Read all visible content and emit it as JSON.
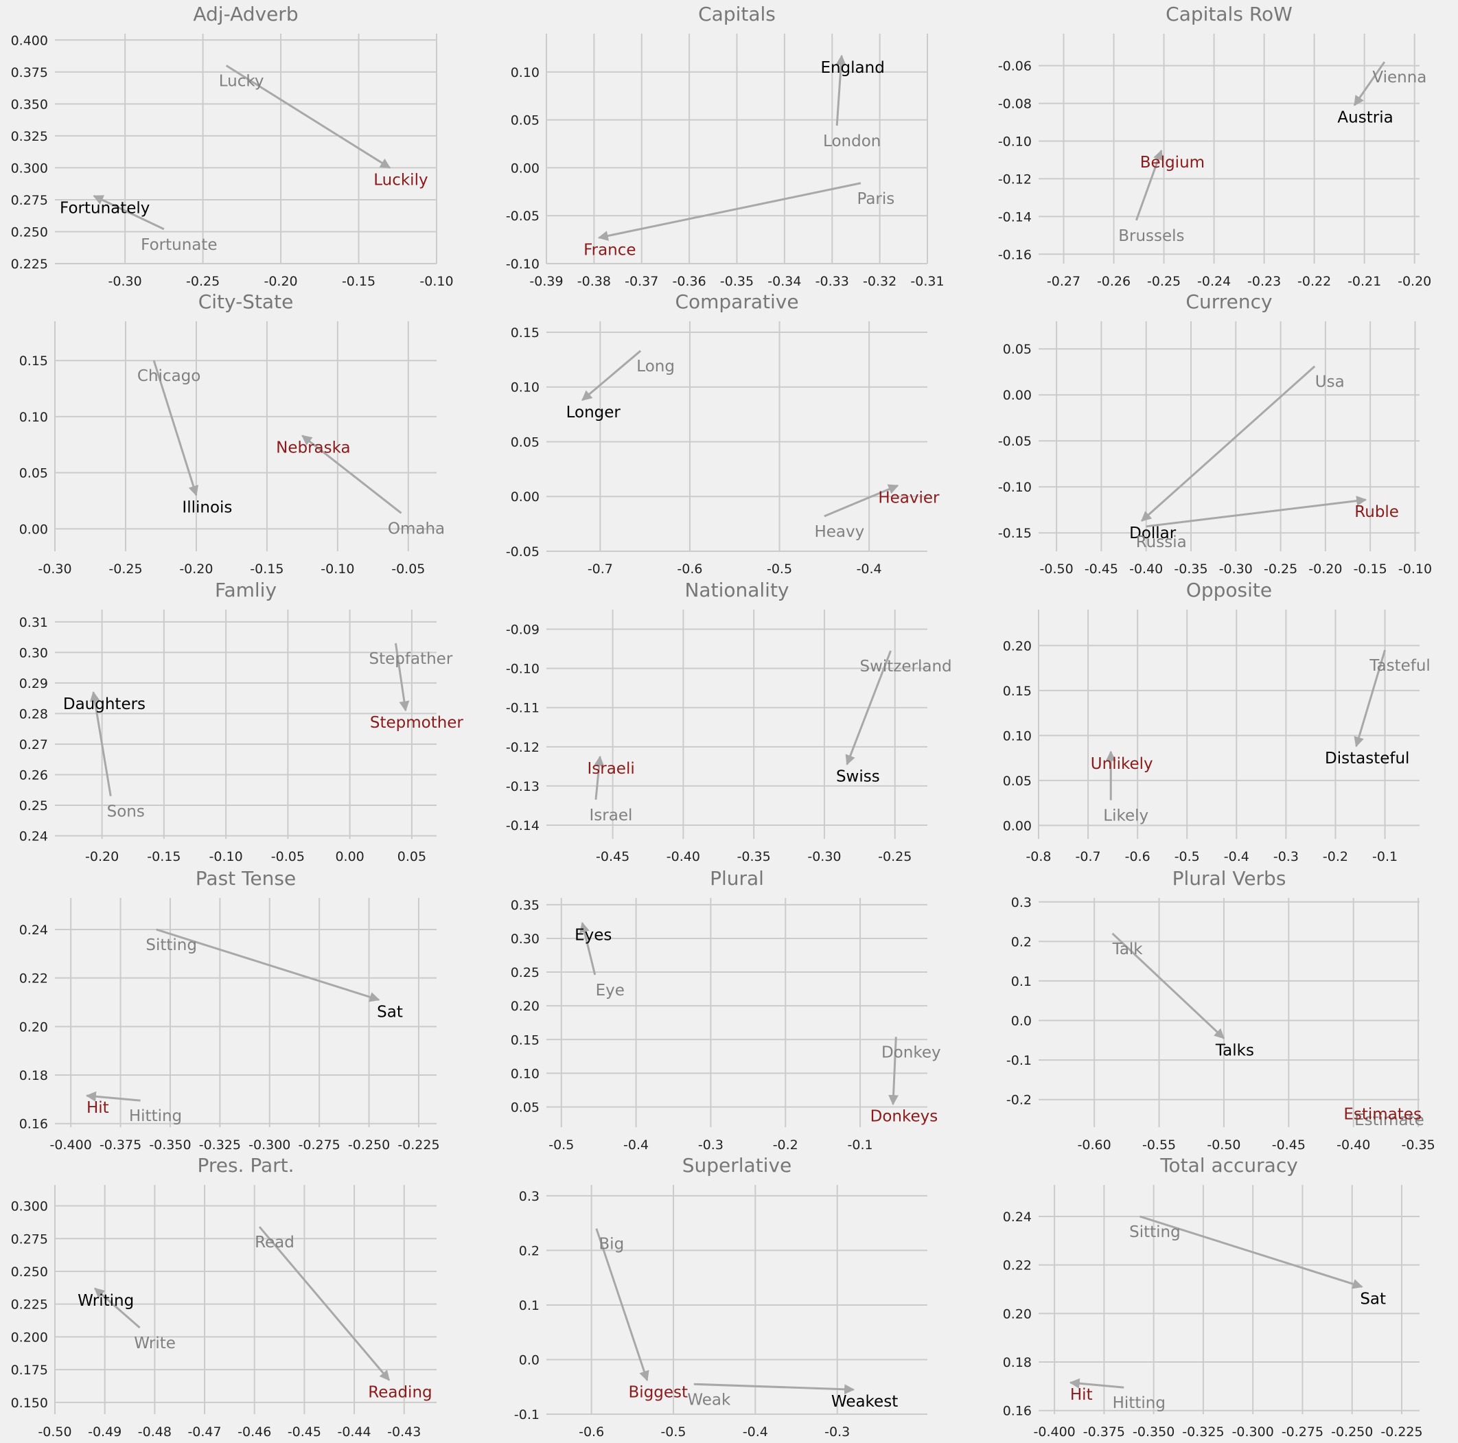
{
  "chart_data": [
    {
      "type": "scatter",
      "title": "Adj-Adverb",
      "xlim": [
        -0.345,
        -0.1
      ],
      "ylim": [
        0.225,
        0.405
      ],
      "xticks": [
        -0.3,
        -0.25,
        -0.2,
        -0.15,
        -0.1
      ],
      "yticks": [
        0.225,
        0.25,
        0.275,
        0.3,
        0.325,
        0.35,
        0.375,
        0.4
      ],
      "xdec": 2,
      "ydec": 3,
      "pairs": [
        {
          "src": {
            "word": "Lucky",
            "x": -0.235,
            "y": 0.38
          },
          "tgt": {
            "word": "Luckily",
            "x": -0.13,
            "y": 0.3
          },
          "highlight": true
        },
        {
          "src": {
            "word": "Fortunate",
            "x": -0.275,
            "y": 0.252
          },
          "tgt": {
            "word": "Fortunately",
            "x": -0.32,
            "y": 0.278
          },
          "highlight": false
        }
      ]
    },
    {
      "type": "scatter",
      "title": "Capitals",
      "xlim": [
        -0.39,
        -0.31
      ],
      "ylim": [
        -0.1,
        0.14
      ],
      "xticks": [
        -0.39,
        -0.38,
        -0.37,
        -0.36,
        -0.35,
        -0.34,
        -0.33,
        -0.32,
        -0.31
      ],
      "yticks": [
        -0.1,
        -0.05,
        0.0,
        0.05,
        0.1
      ],
      "xdec": 2,
      "ydec": 2,
      "pairs": [
        {
          "src": {
            "word": "London",
            "x": -0.329,
            "y": 0.044
          },
          "tgt": {
            "word": "England",
            "x": -0.328,
            "y": 0.117
          },
          "highlight": false
        },
        {
          "src": {
            "word": "Paris",
            "x": -0.324,
            "y": -0.016
          },
          "tgt": {
            "word": "France",
            "x": -0.379,
            "y": -0.073
          },
          "highlight": true
        }
      ]
    },
    {
      "type": "scatter",
      "title": "Capitals RoW",
      "xlim": [
        -0.275,
        -0.199
      ],
      "ylim": [
        -0.165,
        -0.043
      ],
      "xticks": [
        -0.27,
        -0.26,
        -0.25,
        -0.24,
        -0.23,
        -0.22,
        -0.21,
        -0.2
      ],
      "yticks": [
        -0.16,
        -0.14,
        -0.12,
        -0.1,
        -0.08,
        -0.06
      ],
      "xdec": 2,
      "ydec": 2,
      "pairs": [
        {
          "src": {
            "word": "Vienna",
            "x": -0.206,
            "y": -0.058
          },
          "tgt": {
            "word": "Austria",
            "x": -0.212,
            "y": -0.081
          },
          "highlight": false
        },
        {
          "src": {
            "word": "Brussels",
            "x": -0.2555,
            "y": -0.142
          },
          "tgt": {
            "word": "Belgium",
            "x": -0.2505,
            "y": -0.105
          },
          "highlight": true
        }
      ]
    },
    {
      "type": "scatter",
      "title": "City-State",
      "xlim": [
        -0.3,
        -0.03
      ],
      "ylim": [
        -0.02,
        0.185
      ],
      "xticks": [
        -0.3,
        -0.25,
        -0.2,
        -0.15,
        -0.1,
        -0.05
      ],
      "yticks": [
        0.0,
        0.05,
        0.1,
        0.15
      ],
      "xdec": 2,
      "ydec": 2,
      "pairs": [
        {
          "src": {
            "word": "Chicago",
            "x": -0.23,
            "y": 0.15
          },
          "tgt": {
            "word": "Illinois",
            "x": -0.2,
            "y": 0.03
          },
          "highlight": false
        },
        {
          "src": {
            "word": "Omaha",
            "x": -0.055,
            "y": 0.014
          },
          "tgt": {
            "word": "Nebraska",
            "x": -0.125,
            "y": 0.083
          },
          "highlight": true
        }
      ]
    },
    {
      "type": "scatter",
      "title": "Comparative",
      "xlim": [
        -0.76,
        -0.335
      ],
      "ylim": [
        -0.05,
        0.16
      ],
      "xticks": [
        -0.7,
        -0.6,
        -0.5,
        -0.4
      ],
      "yticks": [
        -0.05,
        0.0,
        0.05,
        0.1,
        0.15
      ],
      "xdec": 1,
      "ydec": 2,
      "pairs": [
        {
          "src": {
            "word": "Long",
            "x": -0.655,
            "y": 0.133
          },
          "tgt": {
            "word": "Longer",
            "x": -0.72,
            "y": 0.088
          },
          "highlight": false
        },
        {
          "src": {
            "word": "Heavy",
            "x": -0.45,
            "y": -0.018
          },
          "tgt": {
            "word": "Heavier",
            "x": -0.368,
            "y": 0.01
          },
          "highlight": true
        }
      ]
    },
    {
      "type": "scatter",
      "title": "Currency",
      "xlim": [
        -0.52,
        -0.095
      ],
      "ylim": [
        -0.17,
        0.08
      ],
      "xticks": [
        -0.5,
        -0.45,
        -0.4,
        -0.35,
        -0.3,
        -0.25,
        -0.2,
        -0.15,
        -0.1
      ],
      "yticks": [
        -0.15,
        -0.1,
        -0.05,
        0.0,
        0.05
      ],
      "xdec": 2,
      "ydec": 2,
      "pairs": [
        {
          "src": {
            "word": "Usa",
            "x": -0.212,
            "y": 0.031
          },
          "tgt": {
            "word": "Dollar",
            "x": -0.405,
            "y": -0.137
          },
          "highlight": false
        },
        {
          "src": {
            "word": "Russia",
            "x": -0.4,
            "y": -0.143
          },
          "tgt": {
            "word": "Ruble",
            "x": -0.155,
            "y": -0.114
          },
          "highlight": true
        }
      ]
    },
    {
      "type": "scatter",
      "title": "Famliy",
      "xlim": [
        -0.238,
        0.07
      ],
      "ylim": [
        0.239,
        0.314
      ],
      "xticks": [
        -0.2,
        -0.15,
        -0.1,
        -0.05,
        0.0,
        0.05
      ],
      "yticks": [
        0.24,
        0.25,
        0.26,
        0.27,
        0.28,
        0.29,
        0.3,
        0.31
      ],
      "xdec": 2,
      "ydec": 2,
      "pairs": [
        {
          "src": {
            "word": "Stepfather",
            "x": 0.037,
            "y": 0.303
          },
          "tgt": {
            "word": "Stepmother",
            "x": 0.045,
            "y": 0.281
          },
          "highlight": true
        },
        {
          "src": {
            "word": "Sons",
            "x": -0.193,
            "y": 0.253
          },
          "tgt": {
            "word": "Daughters",
            "x": -0.207,
            "y": 0.287
          },
          "highlight": false
        }
      ]
    },
    {
      "type": "scatter",
      "title": "Nationality",
      "xlim": [
        -0.497,
        -0.227
      ],
      "ylim": [
        -0.1435,
        -0.085
      ],
      "xticks": [
        -0.45,
        -0.4,
        -0.35,
        -0.3,
        -0.25
      ],
      "yticks": [
        -0.14,
        -0.13,
        -0.12,
        -0.11,
        -0.1,
        -0.09
      ],
      "xdec": 2,
      "ydec": 2,
      "pairs": [
        {
          "src": {
            "word": "Switzerland",
            "x": -0.253,
            "y": -0.0955
          },
          "tgt": {
            "word": "Swiss",
            "x": -0.284,
            "y": -0.1245
          },
          "highlight": false
        },
        {
          "src": {
            "word": "Israel",
            "x": -0.462,
            "y": -0.1335
          },
          "tgt": {
            "word": "Israeli",
            "x": -0.459,
            "y": -0.1225
          },
          "highlight": true
        }
      ]
    },
    {
      "type": "scatter",
      "title": "Opposite",
      "xlim": [
        -0.8,
        -0.03
      ],
      "ylim": [
        -0.015,
        0.24
      ],
      "xticks": [
        -0.8,
        -0.7,
        -0.6,
        -0.5,
        -0.4,
        -0.3,
        -0.2,
        -0.1
      ],
      "yticks": [
        0.0,
        0.05,
        0.1,
        0.15,
        0.2
      ],
      "xdec": 1,
      "ydec": 2,
      "pairs": [
        {
          "src": {
            "word": "Tasteful",
            "x": -0.1,
            "y": 0.195
          },
          "tgt": {
            "word": "Distasteful",
            "x": -0.158,
            "y": 0.088
          },
          "highlight": false
        },
        {
          "src": {
            "word": "Likely",
            "x": -0.654,
            "y": 0.028
          },
          "tgt": {
            "word": "Unlikely",
            "x": -0.654,
            "y": 0.082
          },
          "highlight": true
        }
      ]
    },
    {
      "type": "scatter",
      "title": "Past Tense",
      "xlim": [
        -0.408,
        -0.216
      ],
      "ylim": [
        0.1585,
        0.253
      ],
      "xticks": [
        -0.4,
        -0.375,
        -0.35,
        -0.325,
        -0.3,
        -0.275,
        -0.25,
        -0.225
      ],
      "yticks": [
        0.16,
        0.18,
        0.2,
        0.22,
        0.24
      ],
      "xdec": 3,
      "ydec": 2,
      "pairs": [
        {
          "src": {
            "word": "Sitting",
            "x": -0.357,
            "y": 0.24
          },
          "tgt": {
            "word": "Sat",
            "x": -0.245,
            "y": 0.211
          },
          "highlight": false
        },
        {
          "src": {
            "word": "Hitting",
            "x": -0.365,
            "y": 0.1695
          },
          "tgt": {
            "word": "Hit",
            "x": -0.392,
            "y": 0.1715
          },
          "highlight": true
        }
      ]
    },
    {
      "type": "scatter",
      "title": "Plural",
      "xlim": [
        -0.52,
        -0.01
      ],
      "ylim": [
        0.02,
        0.36
      ],
      "xticks": [
        -0.5,
        -0.4,
        -0.3,
        -0.2,
        -0.1
      ],
      "yticks": [
        0.05,
        0.1,
        0.15,
        0.2,
        0.25,
        0.3,
        0.35
      ],
      "xdec": 1,
      "ydec": 2,
      "pairs": [
        {
          "src": {
            "word": "Eye",
            "x": -0.455,
            "y": 0.246
          },
          "tgt": {
            "word": "Eyes",
            "x": -0.472,
            "y": 0.323
          },
          "highlight": false
        },
        {
          "src": {
            "word": "Donkey",
            "x": -0.052,
            "y": 0.154
          },
          "tgt": {
            "word": "Donkeys",
            "x": -0.056,
            "y": 0.054
          },
          "highlight": true
        }
      ]
    },
    {
      "type": "scatter",
      "title": "Plural Verbs",
      "xlim": [
        -0.643,
        -0.349
      ],
      "ylim": [
        -0.27,
        0.31
      ],
      "xticks": [
        -0.6,
        -0.55,
        -0.5,
        -0.45,
        -0.4,
        -0.35
      ],
      "yticks": [
        -0.2,
        -0.1,
        0.0,
        0.1,
        0.2,
        0.3
      ],
      "xdec": 2,
      "ydec": 1,
      "pairs": [
        {
          "src": {
            "word": "Talk",
            "x": -0.586,
            "y": 0.22
          },
          "tgt": {
            "word": "Talks",
            "x": -0.5,
            "y": -0.045
          },
          "highlight": false
        },
        {
          "src": {
            "word": "Estimate",
            "x": -0.384,
            "y": -0.213
          },
          "tgt": {
            "word": "Estimates",
            "x": -0.386,
            "y": -0.207
          },
          "highlight": true
        }
      ]
    },
    {
      "type": "scatter",
      "title": "Pres. Part.",
      "xlim": [
        -0.5,
        -0.4235
      ],
      "ylim": [
        0.141,
        0.316
      ],
      "xticks": [
        -0.5,
        -0.49,
        -0.48,
        -0.47,
        -0.46,
        -0.45,
        -0.44,
        -0.43
      ],
      "yticks": [
        0.15,
        0.175,
        0.2,
        0.225,
        0.25,
        0.275,
        0.3
      ],
      "xdec": 2,
      "ydec": 3,
      "pairs": [
        {
          "src": {
            "word": "Read",
            "x": -0.459,
            "y": 0.284
          },
          "tgt": {
            "word": "Reading",
            "x": -0.433,
            "y": 0.167
          },
          "highlight": true
        },
        {
          "src": {
            "word": "Write",
            "x": -0.483,
            "y": 0.207
          },
          "tgt": {
            "word": "Writing",
            "x": -0.492,
            "y": 0.237
          },
          "highlight": false
        }
      ]
    },
    {
      "type": "scatter",
      "title": "Superlative",
      "xlim": [
        -0.655,
        -0.19
      ],
      "ylim": [
        -0.1,
        0.32
      ],
      "xticks": [
        -0.6,
        -0.5,
        -0.4,
        -0.3
      ],
      "yticks": [
        -0.1,
        0.0,
        0.1,
        0.2,
        0.3
      ],
      "xdec": 1,
      "ydec": 1,
      "pairs": [
        {
          "src": {
            "word": "Big",
            "x": -0.594,
            "y": 0.24
          },
          "tgt": {
            "word": "Biggest",
            "x": -0.532,
            "y": -0.038
          },
          "highlight": true
        },
        {
          "src": {
            "word": "Weak",
            "x": -0.475,
            "y": -0.045
          },
          "tgt": {
            "word": "Weakest",
            "x": -0.28,
            "y": -0.055
          },
          "highlight": false
        }
      ]
    },
    {
      "type": "scatter",
      "title": "Total accuracy",
      "xlim": [
        -0.408,
        -0.216
      ],
      "ylim": [
        0.1585,
        0.253
      ],
      "xticks": [
        -0.4,
        -0.375,
        -0.35,
        -0.325,
        -0.3,
        -0.275,
        -0.25,
        -0.225
      ],
      "yticks": [
        0.16,
        0.18,
        0.2,
        0.22,
        0.24
      ],
      "xdec": 3,
      "ydec": 2,
      "pairs": [
        {
          "src": {
            "word": "Sitting",
            "x": -0.357,
            "y": 0.24
          },
          "tgt": {
            "word": "Sat",
            "x": -0.245,
            "y": 0.211
          },
          "highlight": false
        },
        {
          "src": {
            "word": "Hitting",
            "x": -0.365,
            "y": 0.1695
          },
          "tgt": {
            "word": "Hit",
            "x": -0.392,
            "y": 0.1715
          },
          "highlight": true
        }
      ]
    }
  ],
  "style": {
    "source_color": "#808080",
    "target_color": "#000000",
    "highlight_color": "#8b1a1a",
    "arrow_color": "#a8a8a8",
    "grid_color": "#cbcbcb",
    "background": "#f0f0f0"
  }
}
